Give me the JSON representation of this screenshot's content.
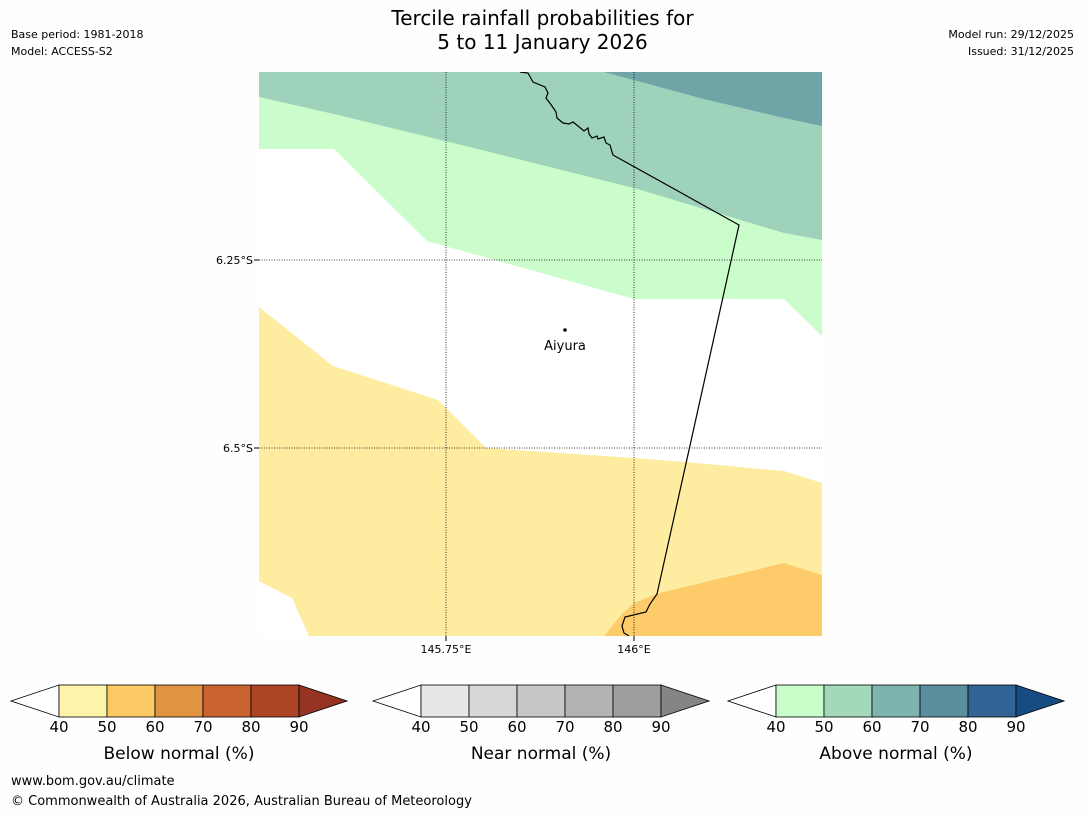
{
  "title": {
    "line1": "Tercile rainfall probabilities for",
    "line2": "5 to 11 January 2026"
  },
  "meta": {
    "base_period": "Base period: 1981-2018",
    "model": "Model: ACCESS-S2",
    "model_run": "Model run: 29/12/2025",
    "issued": "Issued: 31/12/2025"
  },
  "map": {
    "latitude_labels": [
      "6.25°S",
      "6.5°S"
    ],
    "longitude_labels": [
      "145.75°E",
      "146°E"
    ],
    "place": "Aiyura",
    "colors": {
      "above_light": "#cbfccb",
      "above_mid": "#9ed2bb",
      "above_dark": "#6fa5a7",
      "below_light": "#feeca1",
      "below_mid": "#fdcb69"
    }
  },
  "colorbars": [
    {
      "label": "Below normal (%)",
      "ticks": [
        "40",
        "50",
        "60",
        "70",
        "80",
        "90"
      ],
      "colors": [
        "#fff2a9",
        "#fdc965",
        "#e09343",
        "#cb6231",
        "#ad4525",
        "#963424"
      ]
    },
    {
      "label": "Near normal (%)",
      "ticks": [
        "40",
        "50",
        "60",
        "70",
        "80",
        "90"
      ],
      "colors": [
        "#e7e7e7",
        "#d7d7d7",
        "#c7c7c7",
        "#b3b3b3",
        "#9e9e9e",
        "#858585"
      ]
    },
    {
      "label": "Above normal (%)",
      "ticks": [
        "40",
        "50",
        "60",
        "70",
        "80",
        "90"
      ],
      "colors": [
        "#c9fdca",
        "#a4d8bb",
        "#7fb4ae",
        "#5b8f9e",
        "#316495",
        "#164c82"
      ]
    }
  ],
  "footer": {
    "url": "www.bom.gov.au/climate",
    "copyright": "© Commonwealth of Australia 2026, Australian Bureau of Meteorology"
  }
}
